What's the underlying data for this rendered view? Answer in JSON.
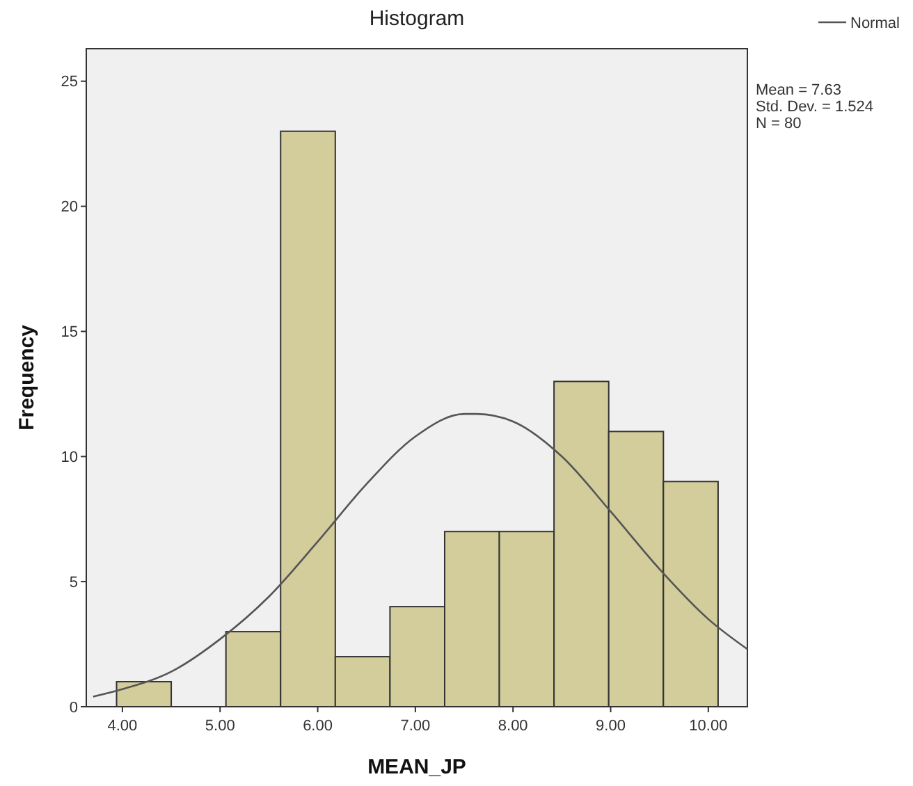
{
  "chart_data": {
    "type": "histogram",
    "title": "Histogram",
    "xlabel": "MEAN_JP",
    "ylabel": "Frequency",
    "bins": [
      3.94,
      4.5,
      5.06,
      5.62,
      6.18,
      6.74,
      7.3,
      7.86,
      8.42,
      8.98,
      9.54,
      10.1
    ],
    "values": [
      1,
      0,
      3,
      23,
      2,
      4,
      7,
      7,
      13,
      11,
      9
    ],
    "color": "#d3cd9b",
    "series": [
      {
        "type": "line",
        "name": "Normal",
        "color": "#555555",
        "x": [
          3.7,
          4,
          4.5,
          5,
          5.5,
          6,
          6.5,
          7,
          7.5,
          7.63,
          8,
          8.5,
          9,
          9.5,
          10,
          10.4
        ],
        "values": [
          0.4,
          0.7,
          1.4,
          2.7,
          4.4,
          6.6,
          8.9,
          10.8,
          11.7,
          11.7,
          11.4,
          10,
          7.8,
          5.5,
          3.5,
          2.3
        ]
      }
    ],
    "xlim": [
      3.63,
      10.4
    ],
    "ylim": [
      0,
      26.3
    ],
    "xticks": [
      {
        "value": 4,
        "label": "4.00"
      },
      {
        "value": 5,
        "label": "5.00"
      },
      {
        "value": 6,
        "label": "6.00"
      },
      {
        "value": 7,
        "label": "7.00"
      },
      {
        "value": 8,
        "label": "8.00"
      },
      {
        "value": 9,
        "label": "9.00"
      },
      {
        "value": 10,
        "label": "10.00"
      }
    ],
    "yticks": [
      0,
      5,
      10,
      15,
      20,
      25
    ],
    "grid": false,
    "legend": "top right",
    "annotations": [
      "Mean = 7.63",
      "Std. Dev. = 1.524",
      "N = 80"
    ]
  }
}
